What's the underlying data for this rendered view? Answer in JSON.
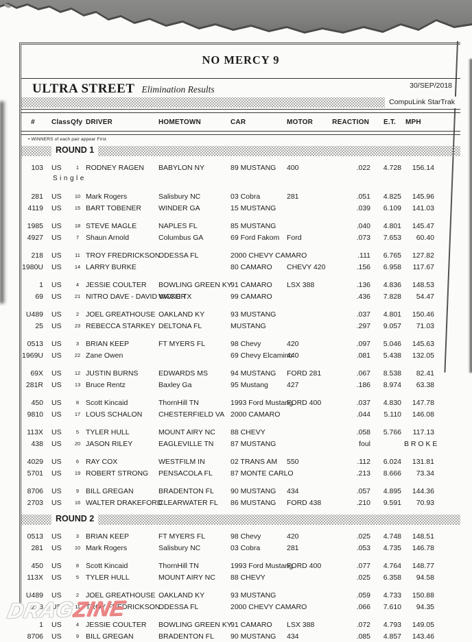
{
  "header": {
    "event_title": "NO MERCY 9",
    "class_title": "ULTRA STREET",
    "subtitle": "Elimination Results",
    "date": "30/SEP/2018",
    "timing_system": "CompuLink StarTrak",
    "winners_note": "• WINNERS of each pair appear First"
  },
  "columns": [
    "#",
    "Class",
    "Qfy",
    "DRIVER",
    "HOMETOWN",
    "CAR",
    "MOTOR",
    "REACTION",
    "E.T.",
    "MPH"
  ],
  "watermark": {
    "part1": "DRAG",
    "part2": "ZINE",
    "drag_color": "#fbfbfa",
    "zine_color": "#ec8787"
  },
  "rounds": [
    {
      "label": "ROUND 1",
      "pairs": [
        {
          "note": "Single",
          "rows": [
            {
              "num": "103",
              "cls": "US",
              "qfy": "1",
              "driver": "RODNEY RAGEN",
              "hometown": "BABYLON NY",
              "car": "89 MUSTANG",
              "motor": "400",
              "reaction": ".022",
              "et": "4.728",
              "mph": "156.14"
            }
          ]
        },
        {
          "rows": [
            {
              "num": "281",
              "cls": "US",
              "qfy": "10",
              "driver": "Mark Rogers",
              "hometown": "Salisbury NC",
              "car": "03 Cobra",
              "motor": "281",
              "reaction": ".051",
              "et": "4.825",
              "mph": "145.96"
            },
            {
              "num": "4119",
              "cls": "US",
              "qfy": "15",
              "driver": "BART TOBENER",
              "hometown": "WINDER GA",
              "car": "15 MUSTANG",
              "motor": "",
              "reaction": ".039",
              "et": "6.109",
              "mph": "141.03"
            }
          ]
        },
        {
          "rows": [
            {
              "num": "1985",
              "cls": "US",
              "qfy": "18",
              "driver": "STEVE MAGLE",
              "hometown": "NAPLES FL",
              "car": "85 MUSTANG",
              "motor": "",
              "reaction": ".040",
              "et": "4.801",
              "mph": "145.47"
            },
            {
              "num": "4927",
              "cls": "US",
              "qfy": "7",
              "driver": "Shaun Arnold",
              "hometown": "Columbus GA",
              "car": "69 Ford Fakom",
              "motor": "Ford",
              "reaction": ".073",
              "et": "7.653",
              "mph": "60.40"
            }
          ]
        },
        {
          "rows": [
            {
              "num": "218",
              "cls": "US",
              "qfy": "11",
              "driver": "TROY FREDRICKSON",
              "hometown": "ODESSA FL",
              "car": "2000 CHEVY CAMARO",
              "motor": "",
              "reaction": ".111",
              "et": "6.765",
              "mph": "127.82"
            },
            {
              "num": "1980U",
              "cls": "US",
              "qfy": "14",
              "driver": "LARRY BURKE",
              "hometown": "",
              "car": "80 CAMARO",
              "motor": "CHEVY 420",
              "reaction": ".156",
              "et": "6.958",
              "mph": "117.67"
            }
          ]
        },
        {
          "rows": [
            {
              "num": "1",
              "cls": "US",
              "qfy": "4",
              "driver": "JESSIE COULTER",
              "hometown": "BOWLING GREEN KY",
              "car": "91 CAMARO",
              "motor": "LSX 388",
              "reaction": ".136",
              "et": "4.836",
              "mph": "148.53"
            },
            {
              "num": "69",
              "cls": "US",
              "qfy": "21",
              "driver": "NITRO DAVE - DAVID VICKER",
              "hometown": "WACO TX",
              "car": "99 CAMARO",
              "motor": "",
              "reaction": ".436",
              "et": "7.828",
              "mph": "54.47"
            }
          ]
        },
        {
          "rows": [
            {
              "num": "U489",
              "cls": "US",
              "qfy": "2",
              "driver": "JOEL GREATHOUSE",
              "hometown": "OAKLAND KY",
              "car": "93 MUSTANG",
              "motor": "",
              "reaction": ".037",
              "et": "4.801",
              "mph": "150.46"
            },
            {
              "num": "25",
              "cls": "US",
              "qfy": "23",
              "driver": "REBECCA STARKEY",
              "hometown": "DELTONA FL",
              "car": "MUSTANG",
              "motor": "",
              "reaction": ".297",
              "et": "9.057",
              "mph": "71.03"
            }
          ]
        },
        {
          "rows": [
            {
              "num": "0513",
              "cls": "US",
              "qfy": "3",
              "driver": "BRIAN KEEP",
              "hometown": "FT MYERS FL",
              "car": "98 Chevy",
              "motor": "420",
              "reaction": ".097",
              "et": "5.046",
              "mph": "145.63"
            },
            {
              "num": "1969U",
              "cls": "US",
              "qfy": "22",
              "driver": "Zane Owen",
              "hometown": "",
              "car": "69 Chevy Elcamino",
              "motor": "440",
              "reaction": ".081",
              "et": "5.438",
              "mph": "132.05"
            }
          ]
        },
        {
          "rows": [
            {
              "num": "69X",
              "cls": "US",
              "qfy": "12",
              "driver": "JUSTIN BURNS",
              "hometown": "EDWARDS MS",
              "car": "94 MUSTANG",
              "motor": "FORD 281",
              "reaction": ".067",
              "et": "8.538",
              "mph": "82.41"
            },
            {
              "num": "281R",
              "cls": "US",
              "qfy": "13",
              "driver": "Bruce Rentz",
              "hometown": "Baxley Ga",
              "car": "95 Mustang",
              "motor": "427",
              "reaction": ".186",
              "et": "8.974",
              "mph": "63.38"
            }
          ]
        },
        {
          "rows": [
            {
              "num": "450",
              "cls": "US",
              "qfy": "8",
              "driver": "Scott Kincaid",
              "hometown": "ThornHill TN",
              "car": "1993 Ford Mustang",
              "motor": "FORD 400",
              "reaction": ".037",
              "et": "4.830",
              "mph": "147.78"
            },
            {
              "num": "9810",
              "cls": "US",
              "qfy": "17",
              "driver": "LOUS SCHALON",
              "hometown": "CHESTERFIELD VA",
              "car": "2000 CAMARO",
              "motor": "",
              "reaction": ".044",
              "et": "5.110",
              "mph": "146.08"
            }
          ]
        },
        {
          "rows": [
            {
              "num": "113X",
              "cls": "US",
              "qfy": "5",
              "driver": "TYLER HULL",
              "hometown": "MOUNT AIRY NC",
              "car": "88 CHEVY",
              "motor": "",
              "reaction": ".058",
              "et": "5.766",
              "mph": "117.13"
            },
            {
              "num": "438",
              "cls": "US",
              "qfy": "20",
              "driver": "JASON RILEY",
              "hometown": "EAGLEVILLE TN",
              "car": "87 MUSTANG",
              "motor": "",
              "reaction": "foul",
              "et": "",
              "mph": "B R O K E"
            }
          ]
        },
        {
          "rows": [
            {
              "num": "4029",
              "cls": "US",
              "qfy": "6",
              "driver": "RAY COX",
              "hometown": "WESTFILM IN",
              "car": "02 TRANS AM",
              "motor": "550",
              "reaction": ".112",
              "et": "6.024",
              "mph": "131.81"
            },
            {
              "num": "5701",
              "cls": "US",
              "qfy": "19",
              "driver": "ROBERT STRONG",
              "hometown": "PENSACOLA FL",
              "car": "87 MONTE CARLO",
              "motor": "",
              "reaction": ".213",
              "et": "8.666",
              "mph": "73.34"
            }
          ]
        },
        {
          "rows": [
            {
              "num": "8706",
              "cls": "US",
              "qfy": "9",
              "driver": "BILL GREGAN",
              "hometown": "BRADENTON FL",
              "car": "90 MUSTANG",
              "motor": "434",
              "reaction": ".057",
              "et": "4.895",
              "mph": "144.36"
            },
            {
              "num": "2703",
              "cls": "US",
              "qfy": "16",
              "driver": "WALTER DRAKEFORD",
              "hometown": "CLEARWATER FL",
              "car": "86 MUSTANG",
              "motor": "FORD 438",
              "reaction": ".210",
              "et": "9.591",
              "mph": "70.93"
            }
          ]
        }
      ]
    },
    {
      "label": "ROUND 2",
      "pairs": [
        {
          "rows": [
            {
              "num": "0513",
              "cls": "US",
              "qfy": "3",
              "driver": "BRIAN KEEP",
              "hometown": "FT MYERS FL",
              "car": "98 Chevy",
              "motor": "420",
              "reaction": ".025",
              "et": "4.748",
              "mph": "148.51"
            },
            {
              "num": "281",
              "cls": "US",
              "qfy": "10",
              "driver": "Mark Rogers",
              "hometown": "Salisbury NC",
              "car": "03 Cobra",
              "motor": "281",
              "reaction": ".053",
              "et": "4.735",
              "mph": "146.78"
            }
          ]
        },
        {
          "rows": [
            {
              "num": "450",
              "cls": "US",
              "qfy": "8",
              "driver": "Scott Kincaid",
              "hometown": "ThornHill TN",
              "car": "1993 Ford Mustang",
              "motor": "FORD 400",
              "reaction": ".077",
              "et": "4.764",
              "mph": "148.77"
            },
            {
              "num": "113X",
              "cls": "US",
              "qfy": "5",
              "driver": "TYLER HULL",
              "hometown": "MOUNT AIRY NC",
              "car": "88 CHEVY",
              "motor": "",
              "reaction": ".025",
              "et": "6.358",
              "mph": "94.58"
            }
          ]
        },
        {
          "rows": [
            {
              "num": "U489",
              "cls": "US",
              "qfy": "2",
              "driver": "JOEL GREATHOUSE",
              "hometown": "OAKLAND KY",
              "car": "93 MUSTANG",
              "motor": "",
              "reaction": ".059",
              "et": "4.733",
              "mph": "150.88"
            },
            {
              "num": "218",
              "cls": "US",
              "qfy": "11",
              "driver": "TROY FREDRICKSON",
              "hometown": "ODESSA FL",
              "car": "2000 CHEVY CAMARO",
              "motor": "",
              "reaction": ".066",
              "et": "7.610",
              "mph": "94.35"
            }
          ]
        },
        {
          "rows": [
            {
              "num": "1",
              "cls": "US",
              "qfy": "4",
              "driver": "JESSIE COULTER",
              "hometown": "BOWLING GREEN KY",
              "car": "91 CAMARO",
              "motor": "LSX 388",
              "reaction": ".072",
              "et": "4.793",
              "mph": "149.05"
            },
            {
              "num": "8706",
              "cls": "US",
              "qfy": "9",
              "driver": "BILL GREGAN",
              "hometown": "BRADENTON FL",
              "car": "90 MUSTANG",
              "motor": "434",
              "reaction": ".085",
              "et": "4.857",
              "mph": "143.46"
            }
          ]
        }
      ]
    }
  ]
}
